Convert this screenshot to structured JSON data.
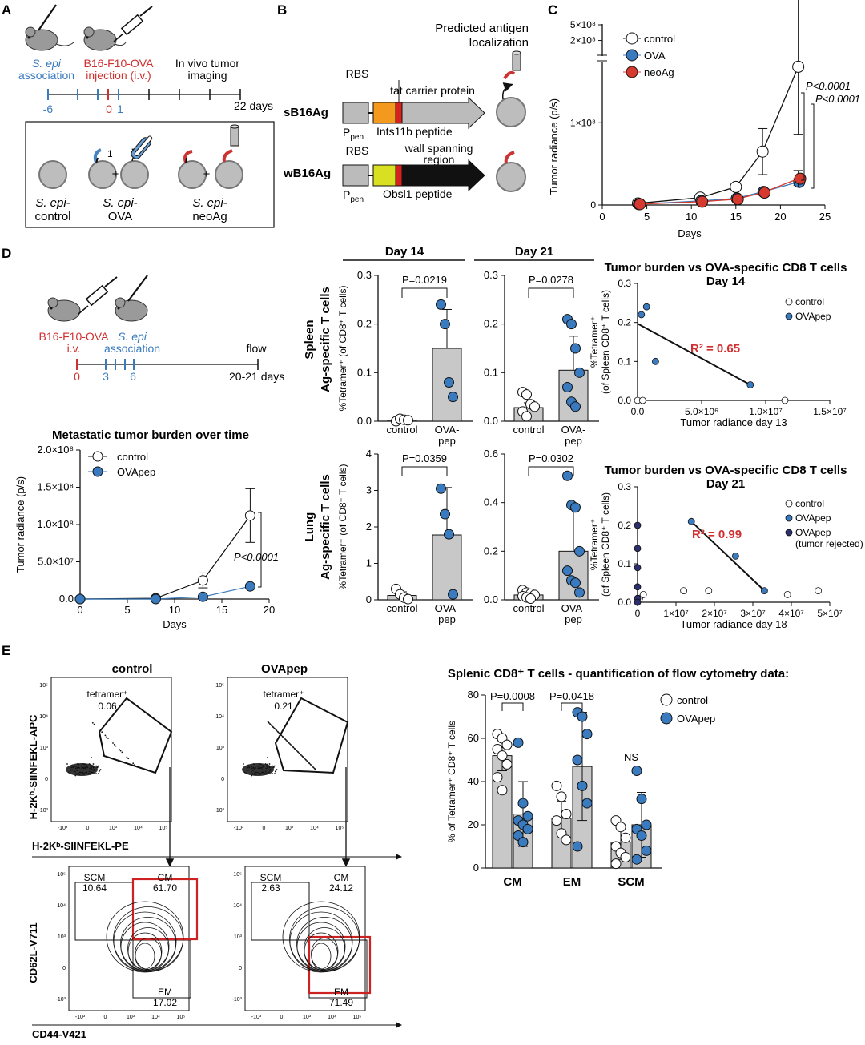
{
  "colors": {
    "control": "#ffffff",
    "ova": "#3a7bbf",
    "neoag": "#d63a2f",
    "ovapep_rejected": "#2b2f6e",
    "gate_red": "#cc2222",
    "bar_fill": "#c8c8c8"
  },
  "panel_a": {
    "letter": "A",
    "sepi": "S. epi",
    "association": "association",
    "b16": "B16-F10-OVA",
    "injection": "injection (i.v.)",
    "imaging": [
      "In vivo tumor",
      "imaging"
    ],
    "ticks": [
      "-6",
      "0",
      "1"
    ],
    "end_label": "22 days",
    "box_labels": [
      [
        "S. epi-",
        "control"
      ],
      [
        "S. epi-",
        "OVA"
      ],
      [
        "S. epi-",
        "neoAg"
      ]
    ],
    "plus": "+",
    "one": "1"
  },
  "panel_b": {
    "letter": "B",
    "predicted": [
      "Predicted antigen",
      "localization"
    ],
    "rbs": "RBS",
    "ppen": "P",
    "ppen_sub": "pen",
    "s_name": "sB16Ag",
    "s_carrier": "tat carrier protein",
    "s_peptide": "Ints11b peptide",
    "w_name": "wB16Ag",
    "w_region": [
      "wall spanning",
      "region"
    ],
    "w_peptide": "Obsl1 peptide"
  },
  "panel_c": {
    "letter": "C",
    "pvals": [
      "P<0.0001",
      "P<0.0001"
    ]
  },
  "panel_d": {
    "letter": "D",
    "schematic": {
      "b16": "B16-F10-OVA",
      "iv": "i.v.",
      "sepi": "S. epi",
      "association": "association",
      "flow": "flow",
      "ticks": [
        "0",
        "3",
        "6"
      ],
      "end_label": "20-21 days"
    },
    "day14": "Day 14",
    "day21": "Day 21",
    "spleen_row": [
      "Spleen",
      "Ag-specific T cells"
    ],
    "lung_row": [
      "Lung",
      "Ag-specific T cells"
    ],
    "bar_ylabel": "%Tetramer⁺ (of CD8⁺ T cells)",
    "corr_title_14": [
      "Tumor burden vs OVA-specific CD8 T cells",
      "Day 14"
    ],
    "corr_title_21": [
      "Tumor burden vs OVA-specific CD8 T cells",
      "Day 21"
    ],
    "corr_ylabel": [
      "%Tetramer⁺",
      "(of Spleen CD8⁺ T cells)"
    ],
    "r2_14": "R² = 0.65",
    "r2_21": "R² = 0.99",
    "legend_control": "control",
    "legend_ovapep": "OVApep",
    "legend_rejected": [
      "OVApep",
      "(tumor rejected)"
    ]
  },
  "panel_e": {
    "letter": "E",
    "ctrl_title": "control",
    "ova_title": "OVApep",
    "tetramer": "tetramer⁺",
    "ctrl_tet": "0.06",
    "ova_tet": "0.21",
    "y_top": "H-2Kᵇ-SIINFEKL-APC",
    "x_top": "H-2Kᵇ-SIINFEKL-PE",
    "y_bot": "CD62L-V711",
    "x_bot": "CD44-V421",
    "scm": "SCM",
    "cm": "CM",
    "em": "EM",
    "ctrl_vals": {
      "scm": "10.64",
      "cm": "61.70",
      "em": "17.02"
    },
    "ova_vals": {
      "scm": "2.63",
      "cm": "24.12",
      "em": "71.49"
    },
    "quant_title": "Splenic CD8⁺ T cells - quantification of flow cytometry data:",
    "quant_ylabel": "% of Tetramer⁺ CD8⁺ T cells"
  },
  "chart_data": [
    {
      "id": "C",
      "type": "line",
      "xlabel": "Days",
      "ylabel": "Tumor radiance (p/s)",
      "xlim": [
        0,
        25
      ],
      "x_ticks": [
        "0",
        "5",
        "10",
        "15",
        "20",
        "25"
      ],
      "y_ticks": [
        "0",
        "1×10⁸",
        "2×10⁸",
        "5×10⁸"
      ],
      "series": [
        {
          "name": "control",
          "x": [
            4,
            11,
            15,
            18,
            22
          ],
          "y": [
            0.02,
            0.09,
            0.22,
            0.65,
            1.68
          ],
          "err": [
            0,
            0,
            0,
            0.28,
            0.82
          ]
        },
        {
          "name": "OVA",
          "x": [
            4,
            11,
            15,
            18,
            22
          ],
          "y": [
            0.01,
            0.05,
            0.08,
            0.16,
            0.28
          ],
          "err": [
            0,
            0,
            0,
            0,
            0.04
          ]
        },
        {
          "name": "neoAg",
          "x": [
            4,
            11,
            15,
            18,
            22
          ],
          "y": [
            0.01,
            0.04,
            0.07,
            0.15,
            0.32
          ],
          "err": [
            0,
            0,
            0,
            0,
            0.1
          ]
        }
      ],
      "pvalues": [
        "P<0.0001",
        "P<0.0001"
      ]
    },
    {
      "id": "D-metastatic",
      "type": "line",
      "title": "Metastatic tumor burden over time",
      "xlabel": "Days",
      "ylabel": "Tumor radiance (p/s)",
      "x_ticks": [
        "0",
        "5",
        "10",
        "15",
        "20"
      ],
      "y_ticks": [
        "0.0",
        "5.0×10⁷",
        "1.0×10⁸",
        "1.5×10⁸",
        "2.0×10⁸"
      ],
      "series": [
        {
          "name": "control",
          "x": [
            0,
            8,
            13,
            18
          ],
          "y": [
            0,
            0.01,
            0.25,
            1.12
          ],
          "err": [
            0,
            0,
            0.1,
            0.36
          ]
        },
        {
          "name": "OVApep",
          "x": [
            0,
            8,
            13,
            18
          ],
          "y": [
            0,
            0,
            0.03,
            0.17
          ],
          "err": [
            0,
            0,
            0,
            0.03
          ]
        }
      ],
      "pvalues": [
        "P<0.0001"
      ]
    },
    {
      "id": "D-spleen-d14",
      "type": "bar",
      "categories": [
        "control",
        "OVA-\npep"
      ],
      "values": [
        0.002,
        0.15
      ],
      "err": [
        0,
        0.08
      ],
      "ylim": [
        0,
        0.3
      ],
      "y_ticks": [
        "0.0",
        "0.1",
        "0.2",
        "0.3"
      ],
      "points": [
        [
          0,
          0.005,
          0.003,
          0.002
        ],
        [
          0.24,
          0.2,
          0.08,
          0.05
        ]
      ],
      "pvalue": "P=0.0219"
    },
    {
      "id": "D-spleen-d21",
      "type": "bar",
      "categories": [
        "control",
        "OVA-\npep"
      ],
      "values": [
        0.028,
        0.105
      ],
      "err": [
        0.01,
        0.07
      ],
      "ylim": [
        0,
        0.3
      ],
      "y_ticks": [
        "0.0",
        "0.1",
        "0.2",
        "0.3"
      ],
      "points": [
        [
          0.06,
          0.055,
          0.035,
          0.03,
          0.02,
          0.01
        ],
        [
          0.21,
          0.2,
          0.15,
          0.1,
          0.07,
          0.04,
          0.03
        ]
      ],
      "pvalue": "P=0.0278"
    },
    {
      "id": "D-lung-d14",
      "type": "bar",
      "categories": [
        "control",
        "OVA-\npep"
      ],
      "values": [
        0.12,
        1.78
      ],
      "err": [
        0.1,
        1.3
      ],
      "ylim": [
        0,
        4
      ],
      "y_ticks": [
        "0",
        "1",
        "2",
        "3",
        "4"
      ],
      "points": [
        [
          0.3,
          0.15,
          0.06,
          0.02
        ],
        [
          3.05,
          2.35,
          1.8,
          0.15
        ]
      ],
      "pvalue": "P=0.0359"
    },
    {
      "id": "D-lung-d21",
      "type": "bar",
      "categories": [
        "control",
        "OVA-\npep"
      ],
      "values": [
        0.02,
        0.2
      ],
      "err": [
        0.01,
        0.18
      ],
      "ylim": [
        0,
        0.6
      ],
      "y_ticks": [
        "0.0",
        "0.2",
        "0.4",
        "0.6"
      ],
      "points": [
        [
          0.04,
          0.03,
          0.025,
          0.02,
          0.015,
          0.01,
          0.005
        ],
        [
          0.51,
          0.39,
          0.38,
          0.2,
          0.12,
          0.08,
          0.07,
          0.03
        ]
      ],
      "pvalue": "P=0.0302"
    },
    {
      "id": "D-corr-d14",
      "type": "scatter",
      "xlabel": "Tumor radiance day 13",
      "xlim": [
        0,
        15000000
      ],
      "ylim": [
        0,
        0.3
      ],
      "x_ticks": [
        "0.0",
        "5.0×10⁶",
        "1.0×10⁷",
        "1.5×10⁷"
      ],
      "y_ticks": [
        "0.0",
        "0.1",
        "0.2",
        "0.3"
      ],
      "series": [
        {
          "name": "control",
          "x": [
            0,
            400000,
            11500000
          ],
          "y": [
            0,
            0,
            0
          ]
        },
        {
          "name": "OVApep",
          "x": [
            300000,
            700000,
            1400000,
            8800000
          ],
          "y": [
            0.22,
            0.24,
            0.1,
            0.04
          ]
        }
      ],
      "fit": {
        "x": [
          0,
          8800000
        ],
        "y": [
          0.197,
          0.04
        ]
      },
      "r2": "R² = 0.65"
    },
    {
      "id": "D-corr-d21",
      "type": "scatter",
      "xlabel": "Tumor radiance day 18",
      "xlim": [
        0,
        50000000
      ],
      "ylim": [
        0,
        0.3
      ],
      "x_ticks": [
        "0",
        "1×10⁷",
        "2×10⁷",
        "3×10⁷",
        "4×10⁷",
        "5×10⁷"
      ],
      "y_ticks": [
        "0.0",
        "0.1",
        "0.2",
        "0.3"
      ],
      "series": [
        {
          "name": "control",
          "x": [
            500000,
            1500000,
            12000000,
            18500000,
            39000000,
            47000000
          ],
          "y": [
            0.01,
            0.02,
            0.03,
            0.03,
            0.02,
            0.03
          ]
        },
        {
          "name": "OVApep",
          "x": [
            14000000,
            25500000,
            33000000
          ],
          "y": [
            0.21,
            0.12,
            0.03
          ]
        },
        {
          "name": "OVApep (tumor rejected)",
          "x": [
            0,
            0,
            0,
            0,
            0,
            0
          ],
          "y": [
            0.2,
            0.14,
            0.09,
            0.04,
            0.01,
            0.0
          ]
        }
      ],
      "fit": {
        "x": [
          14000000,
          33000000
        ],
        "y": [
          0.21,
          0.03
        ]
      },
      "r2": "R² = 0.99"
    },
    {
      "id": "E-quant",
      "type": "bar",
      "categories": [
        "CM",
        "EM",
        "SCM"
      ],
      "ylim": [
        0,
        80
      ],
      "y_ticks": [
        "0",
        "20",
        "40",
        "60",
        "80"
      ],
      "series": [
        {
          "name": "control",
          "values": [
            52,
            23,
            12
          ],
          "err": [
            7,
            8,
            8
          ]
        },
        {
          "name": "OVApep",
          "values": [
            25,
            47,
            20
          ],
          "err": [
            15,
            25,
            15
          ]
        }
      ],
      "points": {
        "control": [
          [
            62,
            60,
            57,
            55,
            52,
            48,
            42,
            36
          ],
          [
            38,
            33,
            25,
            22,
            16,
            13
          ],
          [
            22,
            19,
            14,
            10,
            7,
            5,
            2
          ]
        ],
        "OVApep": [
          [
            58,
            30,
            24,
            22,
            20,
            18,
            15,
            12
          ],
          [
            72,
            70,
            62,
            50,
            38,
            30,
            10
          ],
          [
            45,
            32,
            20,
            18,
            15,
            8,
            4
          ]
        ]
      },
      "pvalues": [
        "P=0.0008",
        "P=0.0418",
        "NS"
      ]
    }
  ]
}
